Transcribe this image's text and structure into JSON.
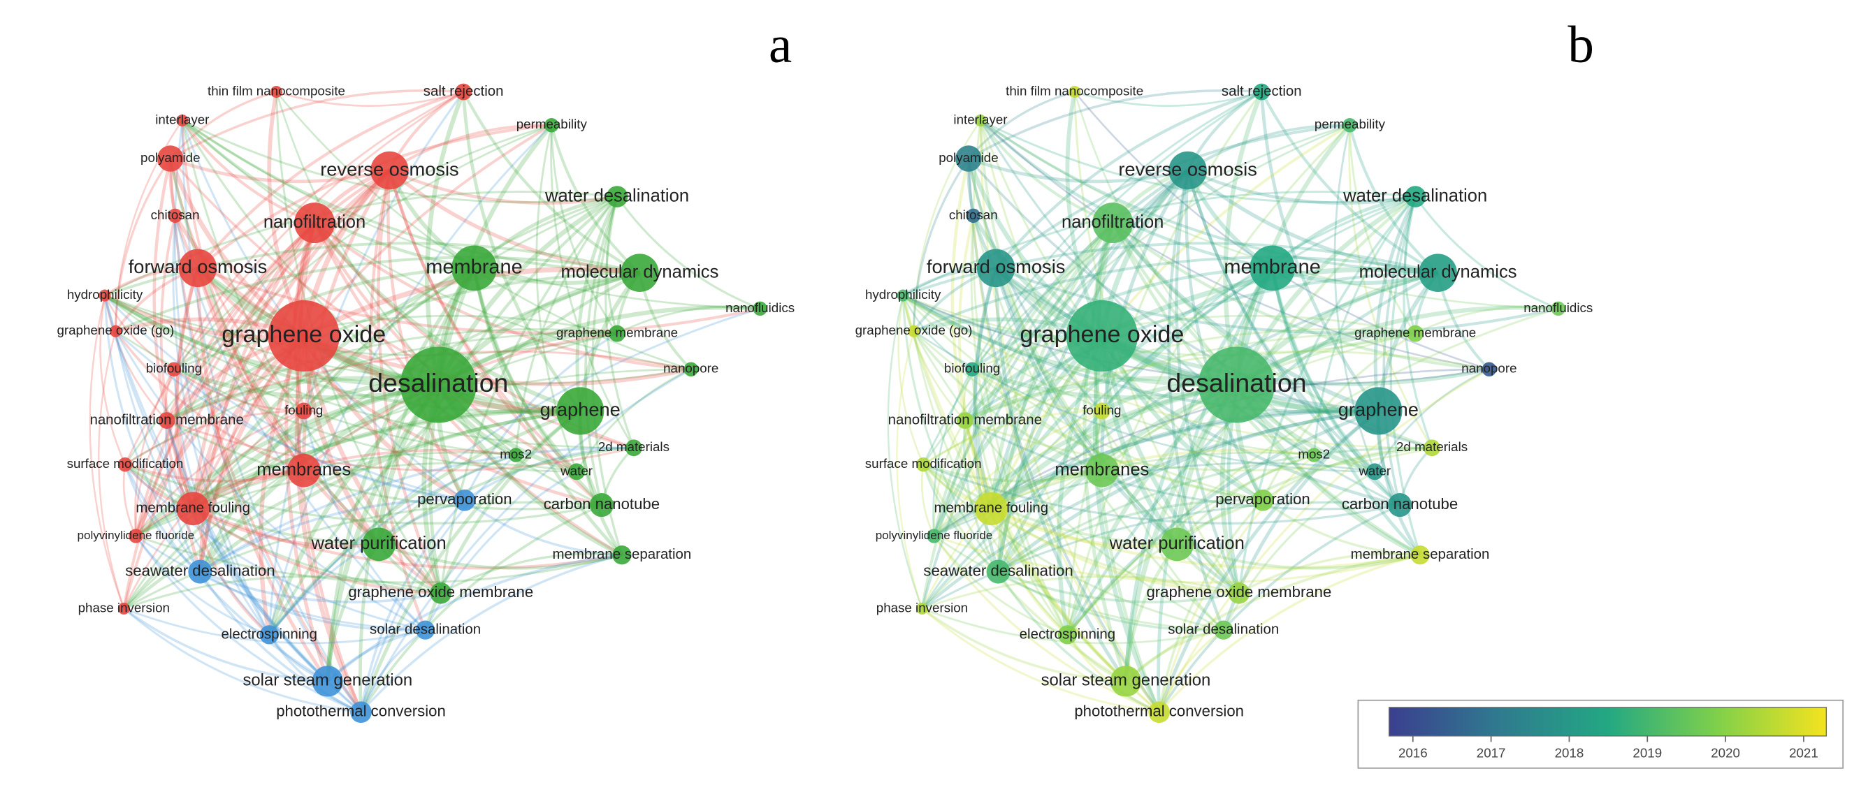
{
  "panels": [
    {
      "label": "a",
      "nodes": [
        "thin film nanocomposite",
        "salt rejection",
        "interlayer",
        "permeability",
        "polyamide",
        "reverse osmosis",
        "water desalination",
        "chitosan",
        "nanofiltration",
        "forward osmosis",
        "membrane",
        "molecular dynamics",
        "hydrophilicity",
        "nanofluidics",
        "graphene oxide",
        "graphene oxide (go)",
        "graphene membrane",
        "biofouling",
        "nanopore",
        "desalination",
        "graphene",
        "nanofiltration membrane",
        "fouling",
        "mos2",
        "2d materials",
        "surface modification",
        "membranes",
        "water",
        "pervaporation",
        "carbon nanotube",
        "membrane fouling",
        "polyvinylidene fluoride",
        "water purification",
        "membrane separation",
        "seawater desalination",
        "graphene oxide membrane",
        "phase inversion",
        "electrospinning",
        "solar desalination",
        "solar steam generation",
        "photothermal conversion"
      ]
    },
    {
      "label": "b",
      "nodes": [
        "thin film nanocomposite",
        "salt rejection",
        "interlayer",
        "permeability",
        "polyamide",
        "reverse osmosis",
        "water desalination",
        "chitosan",
        "nanofiltration",
        "forward osmosis",
        "membrane",
        "molecular dynamics",
        "hydrophilicity",
        "nanofluidics",
        "graphene oxide",
        "graphene oxide (go)",
        "graphene membrane",
        "biofouling",
        "nanopore",
        "desalination",
        "graphene",
        "nanofiltration membrane",
        "fouling",
        "mos2",
        "2d materials",
        "surface modification",
        "membranes",
        "water",
        "pervaporation",
        "carbon nanotube",
        "membrane fouling",
        "polyvinylidene fluoride",
        "water purification",
        "membrane separation",
        "seawater desalination",
        "graphene oxide membrane",
        "phase inversion",
        "electrospinning",
        "solar desalination",
        "solar steam generation",
        "photothermal conversion"
      ],
      "colorbar": {
        "ticks": [
          2016,
          2017,
          2018,
          2019,
          2020,
          2021
        ]
      }
    }
  ]
}
